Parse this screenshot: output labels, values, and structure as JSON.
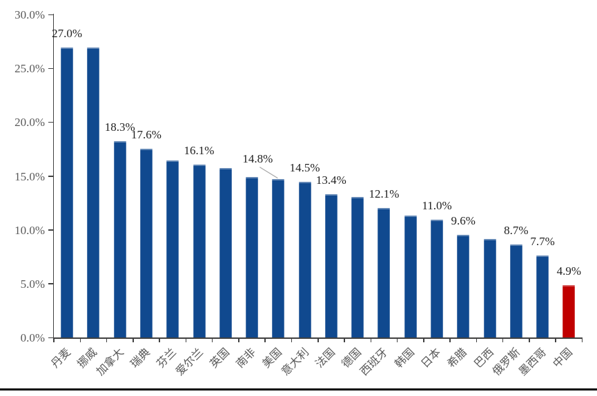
{
  "chart_data": {
    "type": "bar",
    "title": "",
    "unit": "%",
    "categories": [
      "丹麦",
      "挪威",
      "加拿大",
      "瑞典",
      "芬兰",
      "爱尔兰",
      "英国",
      "南非",
      "美国",
      "意大利",
      "法国",
      "德国",
      "西班牙",
      "韩国",
      "日本",
      "希腊",
      "巴西",
      "俄罗斯",
      "墨西哥",
      "中国"
    ],
    "values": [
      27.0,
      27.0,
      18.3,
      17.6,
      16.5,
      16.1,
      15.8,
      15.0,
      14.8,
      14.5,
      13.4,
      13.1,
      12.1,
      11.4,
      11.0,
      9.6,
      9.2,
      8.7,
      7.7,
      4.9
    ],
    "data_labels": [
      "27.0%",
      null,
      "18.3%",
      "17.6%",
      null,
      "16.1%",
      null,
      null,
      "14.8%",
      "14.5%",
      "13.4%",
      null,
      "12.1%",
      null,
      "11.0%",
      "9.6%",
      null,
      "8.7%",
      "7.7%",
      "4.9%"
    ],
    "callout_index": 8,
    "highlight_index": 19,
    "y_tick_labels": [
      "30.0%",
      "25.0%",
      "20.0%",
      "15.0%",
      "10.0%",
      "5.0%",
      "0.0%"
    ],
    "y_tick_values": [
      30,
      25,
      20,
      15,
      10,
      5,
      0
    ],
    "ylim": [
      0,
      30
    ],
    "grid": false,
    "legend": null,
    "colors": {
      "bar": "#10498F",
      "highlight": "#C00000",
      "axis": "#404040",
      "tick_label": "#595959",
      "data_label": "#1F1F1F",
      "category_label": "#595959",
      "leader_line": "#A6A6A6",
      "bottom_rule": "#000000"
    }
  }
}
